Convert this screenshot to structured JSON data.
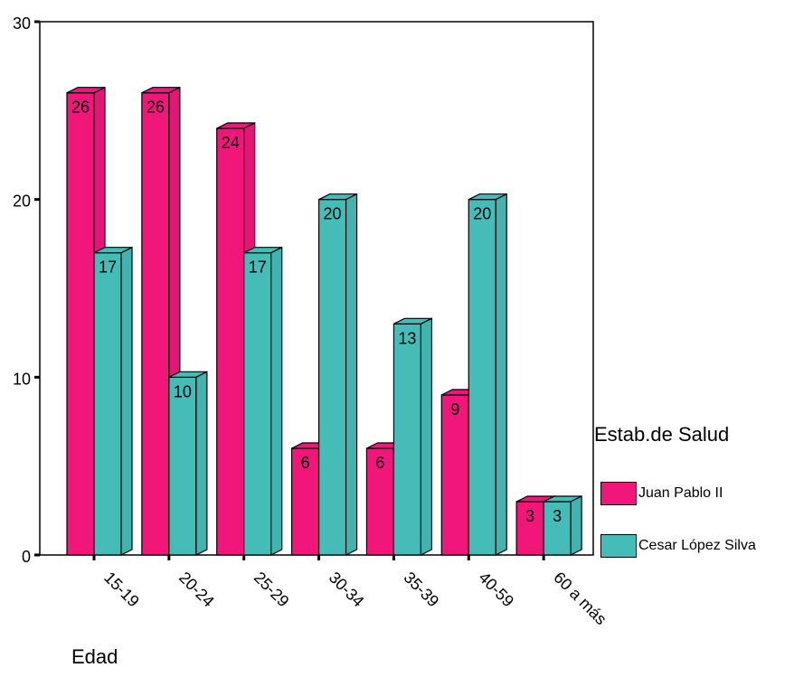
{
  "chart_data": {
    "type": "bar",
    "categories": [
      "15-19",
      "20-24",
      "25-29",
      "30-34",
      "35-39",
      "40-59",
      "60 a más"
    ],
    "series": [
      {
        "name": "Juan Pablo II",
        "color": "#f0167a",
        "values": [
          26,
          26,
          24,
          6,
          6,
          9,
          3
        ]
      },
      {
        "name": "Cesar López Silva",
        "color": "#45bcb7",
        "values": [
          17,
          10,
          17,
          20,
          13,
          20,
          3
        ]
      }
    ],
    "title": "",
    "xlabel": "Edad",
    "ylabel": "",
    "ylim": [
      0,
      30
    ],
    "yticks": [
      "0",
      "10",
      "20",
      "30"
    ],
    "legend_title": "Estab.de Salud",
    "legend_position": "right",
    "grid": false,
    "three_d": true
  }
}
